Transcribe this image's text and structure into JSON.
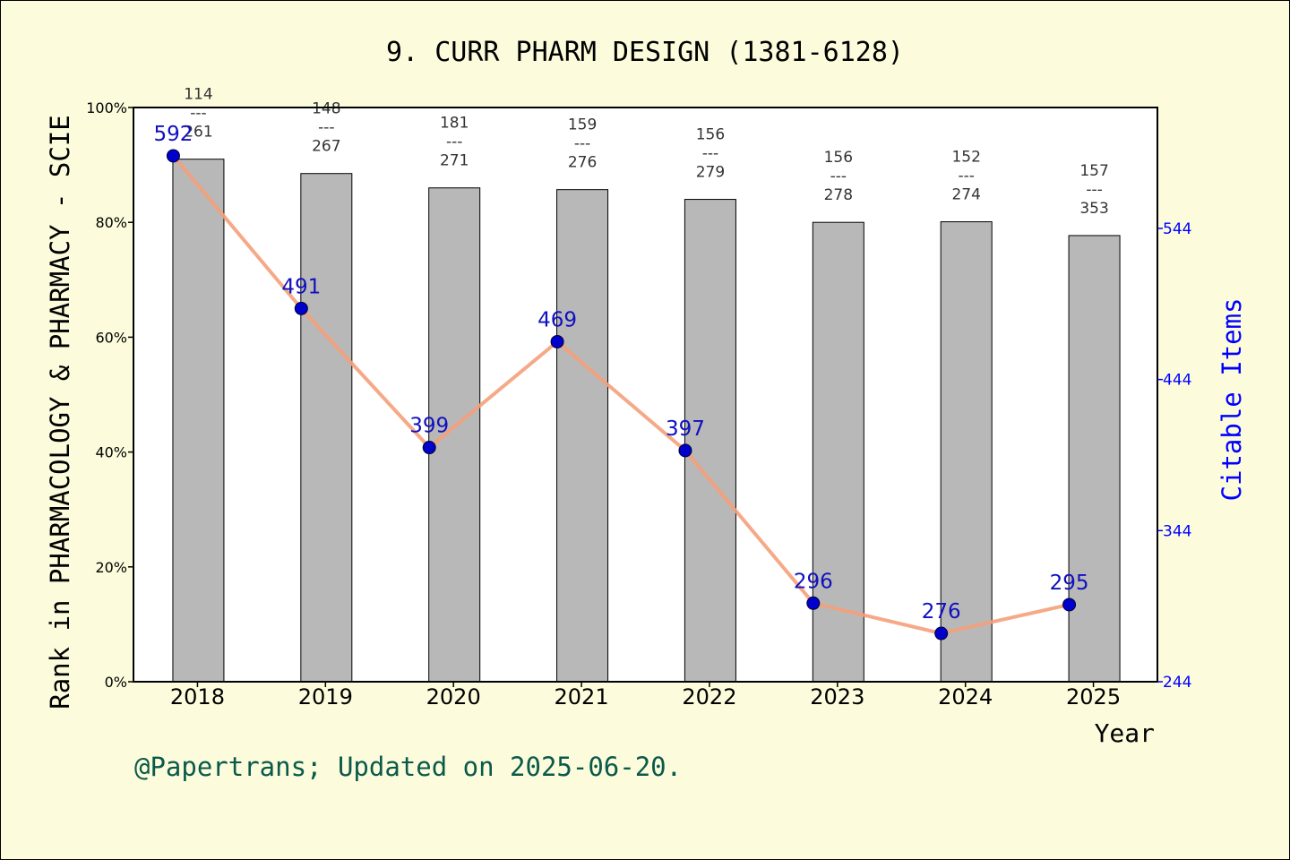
{
  "chart_data": {
    "type": "bar+line",
    "title": "9. CURR PHARM DESIGN (1381-6128)",
    "xlabel": "Year",
    "ylabel": "Rank in PHARMACOLOGY & PHARMACY - SCIE",
    "y2label": "Citable Items",
    "categories": [
      "2018",
      "2019",
      "2020",
      "2021",
      "2022",
      "2023",
      "2024",
      "2025"
    ],
    "ylim": [
      0,
      100
    ],
    "yticks": [
      "0%",
      "20%",
      "40%",
      "60%",
      "80%",
      "100%"
    ],
    "y2lim": [
      244,
      624
    ],
    "y2ticks": [
      "244",
      "344",
      "444",
      "544"
    ],
    "bars": {
      "rank_label_top": [
        "114",
        "148",
        "181",
        "159",
        "156",
        "156",
        "152",
        "157"
      ],
      "rank_label_sep": "---",
      "rank_label_bottom": [
        "261",
        "267",
        "271",
        "276",
        "279",
        "278",
        "274",
        "353"
      ],
      "values_percent": [
        91,
        88.5,
        86,
        85.7,
        84,
        80,
        80.1,
        77.7
      ]
    },
    "series": [
      {
        "name": "Citable Items",
        "values": [
          592,
          491,
          399,
          469,
          397,
          296,
          276,
          295
        ]
      }
    ],
    "colors": {
      "bar": "#b8b8b8",
      "line": "#f5a07a",
      "marker": "#0000cc",
      "background": "#fcfcdc",
      "plot_bg": "#ffffff"
    }
  },
  "footer": "@Papertrans; Updated on 2025-06-20."
}
